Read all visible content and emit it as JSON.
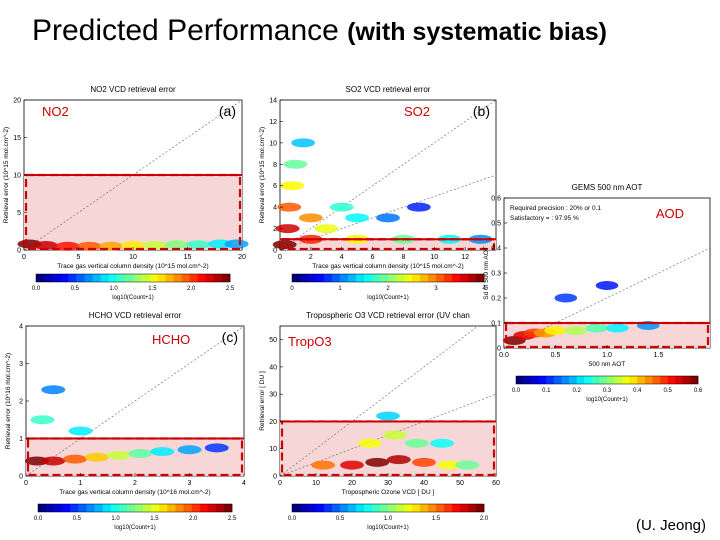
{
  "slide": {
    "title": "Predicted Performance",
    "subtitle": "(with systematic bias)",
    "credit": "(U. Jeong)"
  },
  "colors": {
    "highlight": "#cc0000",
    "shade": "#f6d6d6",
    "reference_line": "#777777",
    "colorbar": [
      "#00007f",
      "#0000ff",
      "#0080ff",
      "#00ffff",
      "#80ff80",
      "#ffff00",
      "#ff8000",
      "#ff0000",
      "#7f0000"
    ]
  },
  "chart_data": [
    {
      "id": "no2",
      "type": "heatmap",
      "title": "NO2 VCD retrieval error",
      "panel_tag": "(a)",
      "species": "NO2",
      "xlabel": "Trace gas vertical column density (10^15 mol.cm^-2)",
      "ylabel": "Retrieval error (10^15 mol.cm^-2)",
      "xlim": [
        0,
        20
      ],
      "ylim": [
        0,
        20
      ],
      "xticks": [
        "0",
        "5",
        "10",
        "15",
        "20"
      ],
      "yticks": [
        "0",
        "5",
        "10",
        "15",
        "20"
      ],
      "threshold": 10,
      "reference_slopes": [
        1.0
      ],
      "colorbar": {
        "label": "log10(Count+1)",
        "ticks": [
          "0.0",
          "0.5",
          "1.0",
          "1.5",
          "2.0",
          "2.5"
        ]
      },
      "density": [
        {
          "x": 0.5,
          "y": 0.8,
          "c": 2.8
        },
        {
          "x": 2,
          "y": 0.6,
          "c": 2.6
        },
        {
          "x": 4,
          "y": 0.5,
          "c": 2.4
        },
        {
          "x": 6,
          "y": 0.5,
          "c": 2.2
        },
        {
          "x": 8,
          "y": 0.5,
          "c": 2.0
        },
        {
          "x": 10,
          "y": 0.6,
          "c": 1.8
        },
        {
          "x": 12,
          "y": 0.6,
          "c": 1.6
        },
        {
          "x": 14,
          "y": 0.7,
          "c": 1.4
        },
        {
          "x": 16,
          "y": 0.7,
          "c": 1.2
        },
        {
          "x": 18,
          "y": 0.8,
          "c": 1.0
        },
        {
          "x": 19.5,
          "y": 0.8,
          "c": 0.8
        }
      ]
    },
    {
      "id": "so2",
      "type": "heatmap",
      "title": "SO2 VCD retrieval error",
      "panel_tag": "(b)",
      "species": "SO2",
      "xlabel": "Trace gas vertical column density (10^15 mol.cm^-2)",
      "ylabel": "Retrieval error (10^15 mol.cm^-2)",
      "xlim": [
        0,
        14
      ],
      "ylim": [
        0,
        14
      ],
      "xticks": [
        "0",
        "2",
        "4",
        "6",
        "8",
        "10",
        "12"
      ],
      "yticks": [
        "0",
        "2",
        "4",
        "6",
        "8",
        "10",
        "12",
        "14"
      ],
      "threshold": 1,
      "reference_slopes": [
        1.0,
        0.5
      ],
      "colorbar": {
        "label": "log10(Count+1)",
        "ticks": [
          "0",
          "1",
          "2",
          "3",
          "4"
        ]
      },
      "density": [
        {
          "x": 0.3,
          "y": 0.5,
          "c": 3.8
        },
        {
          "x": 0.5,
          "y": 2,
          "c": 3.5
        },
        {
          "x": 0.6,
          "y": 4,
          "c": 3.0
        },
        {
          "x": 0.8,
          "y": 6,
          "c": 2.4
        },
        {
          "x": 1.0,
          "y": 8,
          "c": 1.8
        },
        {
          "x": 1.5,
          "y": 10,
          "c": 1.2
        },
        {
          "x": 2,
          "y": 3,
          "c": 2.8
        },
        {
          "x": 3,
          "y": 2,
          "c": 2.3
        },
        {
          "x": 4,
          "y": 4,
          "c": 1.6
        },
        {
          "x": 5,
          "y": 3,
          "c": 1.4
        },
        {
          "x": 7,
          "y": 3,
          "c": 0.9
        },
        {
          "x": 9,
          "y": 4,
          "c": 0.6
        },
        {
          "x": 2,
          "y": 1,
          "c": 3.2
        },
        {
          "x": 5,
          "y": 1,
          "c": 2.4
        },
        {
          "x": 8,
          "y": 1,
          "c": 1.8
        },
        {
          "x": 11,
          "y": 1,
          "c": 1.4
        },
        {
          "x": 13,
          "y": 1,
          "c": 1.0
        }
      ]
    },
    {
      "id": "aod",
      "type": "heatmap",
      "title": "GEMS 500 nm AOT",
      "species": "AOD",
      "annotations": [
        "Required precision : 20% or 0.1",
        "Satisfactory = : 97.95 %"
      ],
      "xlabel": "500 nm AOT",
      "ylabel": "Sd of 500 nm AOT",
      "xlim": [
        0,
        2
      ],
      "ylim": [
        0,
        0.6
      ],
      "xticks": [
        "0.0",
        "0.5",
        "1.0",
        "1.5"
      ],
      "yticks": [
        "0.0",
        "0.1",
        "0.2",
        "0.3",
        "0.4",
        "0.5",
        "0.6"
      ],
      "threshold": 0.1,
      "reference_slopes": [
        0.2
      ],
      "colorbar": {
        "label": "log10(Count+1)",
        "ticks": [
          "0.0",
          "0.1",
          "0.2",
          "0.3",
          "0.4",
          "0.5",
          "0.6"
        ]
      },
      "density": [
        {
          "x": 0.1,
          "y": 0.03,
          "c": 0.55
        },
        {
          "x": 0.2,
          "y": 0.05,
          "c": 0.5
        },
        {
          "x": 0.3,
          "y": 0.06,
          "c": 0.45
        },
        {
          "x": 0.4,
          "y": 0.06,
          "c": 0.4
        },
        {
          "x": 0.5,
          "y": 0.07,
          "c": 0.35
        },
        {
          "x": 0.7,
          "y": 0.07,
          "c": 0.3
        },
        {
          "x": 0.9,
          "y": 0.08,
          "c": 0.25
        },
        {
          "x": 1.1,
          "y": 0.08,
          "c": 0.2
        },
        {
          "x": 1.4,
          "y": 0.09,
          "c": 0.15
        },
        {
          "x": 0.6,
          "y": 0.2,
          "c": 0.1
        },
        {
          "x": 1.0,
          "y": 0.25,
          "c": 0.08
        }
      ]
    },
    {
      "id": "hcho",
      "type": "heatmap",
      "title": "HCHO VCD retrieval error",
      "panel_tag": "(c)",
      "species": "HCHO",
      "xlabel": "Trace gas vertical column density (10^16 mol.cm^-2)",
      "ylabel": "Retrieval error (10^16 mol.cm^-2)",
      "xlim": [
        0,
        4
      ],
      "ylim": [
        0,
        4
      ],
      "xticks": [
        "0",
        "1",
        "2",
        "3",
        "4"
      ],
      "yticks": [
        "0",
        "1",
        "2",
        "3",
        "4"
      ],
      "threshold": 1,
      "reference_slopes": [
        1.0
      ],
      "colorbar": {
        "label": "log10(Count+1)",
        "ticks": [
          "0.0",
          "0.5",
          "1.0",
          "1.5",
          "2.0",
          "2.5"
        ]
      },
      "density": [
        {
          "x": 0.2,
          "y": 0.4,
          "c": 2.8
        },
        {
          "x": 0.5,
          "y": 0.4,
          "c": 2.6
        },
        {
          "x": 0.9,
          "y": 0.45,
          "c": 2.2
        },
        {
          "x": 1.3,
          "y": 0.5,
          "c": 1.9
        },
        {
          "x": 1.7,
          "y": 0.55,
          "c": 1.6
        },
        {
          "x": 2.1,
          "y": 0.6,
          "c": 1.3
        },
        {
          "x": 2.5,
          "y": 0.65,
          "c": 1.0
        },
        {
          "x": 3.0,
          "y": 0.7,
          "c": 0.8
        },
        {
          "x": 3.5,
          "y": 0.75,
          "c": 0.5
        },
        {
          "x": 0.3,
          "y": 1.5,
          "c": 1.2
        },
        {
          "x": 0.5,
          "y": 2.3,
          "c": 0.7
        },
        {
          "x": 1.0,
          "y": 1.2,
          "c": 1.0
        }
      ]
    },
    {
      "id": "tropo3",
      "type": "heatmap",
      "title": "Tropospheric O3 VCD retrieval error (UV chan",
      "species": "TropO3",
      "xlabel": "Tropospheric Ozone VCD [ DU ]",
      "ylabel": "Retrieval error [ DU ]",
      "xlim": [
        0,
        60
      ],
      "ylim": [
        0,
        55
      ],
      "xticks": [
        "0",
        "10",
        "20",
        "30",
        "40",
        "50",
        "60"
      ],
      "yticks": [
        "0",
        "10",
        "20",
        "30",
        "40",
        "50"
      ],
      "threshold": 20,
      "reference_slopes": [
        1.0,
        0.5
      ],
      "colorbar": {
        "label": "log10(Count+1)",
        "ticks": [
          "0.0",
          "0.5",
          "1.0",
          "1.5",
          "2.0"
        ]
      },
      "density": [
        {
          "x": 12,
          "y": 4,
          "c": 1.6
        },
        {
          "x": 20,
          "y": 4,
          "c": 1.9
        },
        {
          "x": 27,
          "y": 5,
          "c": 2.1
        },
        {
          "x": 33,
          "y": 6,
          "c": 2.0
        },
        {
          "x": 40,
          "y": 5,
          "c": 1.7
        },
        {
          "x": 47,
          "y": 4,
          "c": 1.3
        },
        {
          "x": 52,
          "y": 4,
          "c": 1.0
        },
        {
          "x": 25,
          "y": 12,
          "c": 1.3
        },
        {
          "x": 32,
          "y": 15,
          "c": 1.2
        },
        {
          "x": 38,
          "y": 12,
          "c": 1.0
        },
        {
          "x": 45,
          "y": 12,
          "c": 0.8
        },
        {
          "x": 30,
          "y": 22,
          "c": 0.7
        }
      ]
    }
  ]
}
